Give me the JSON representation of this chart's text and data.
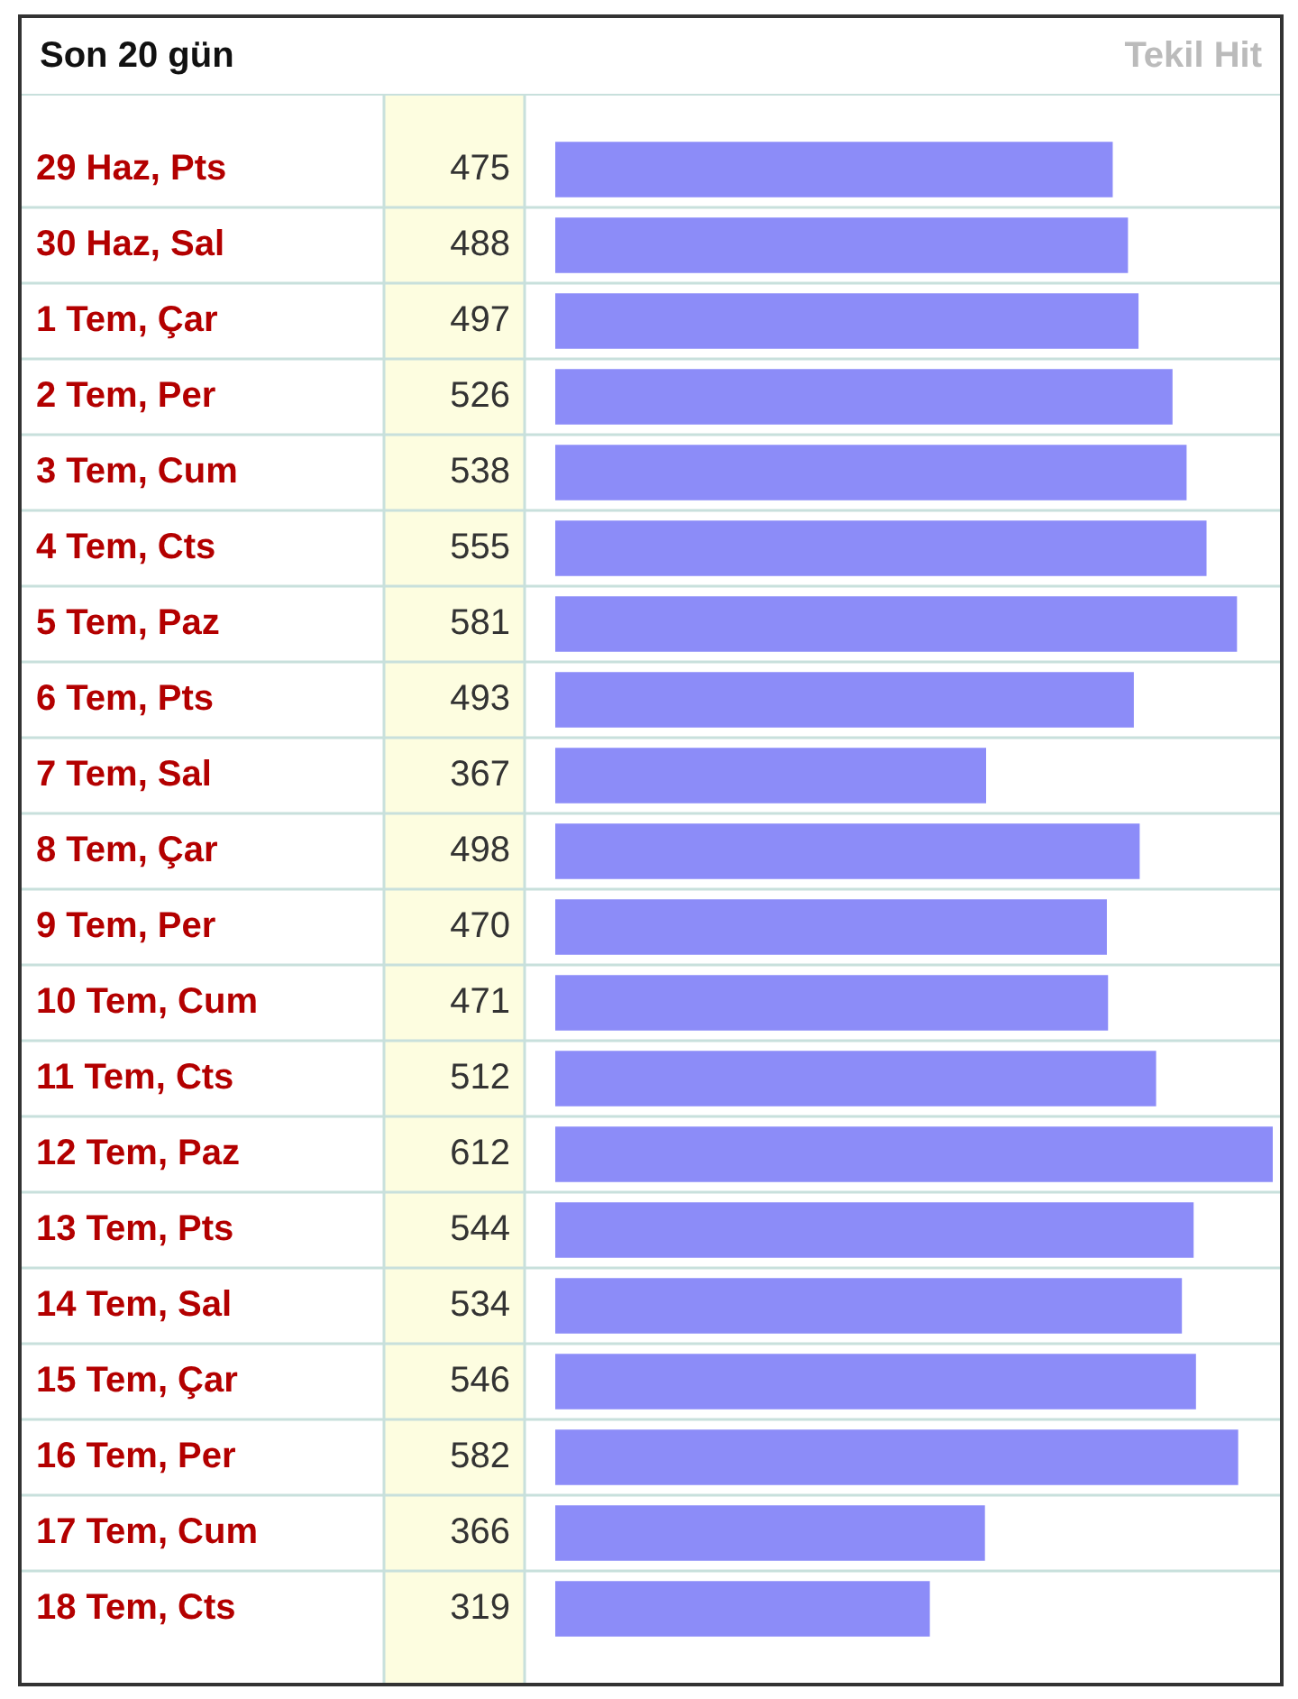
{
  "chart_data": {
    "type": "bar",
    "orientation": "horizontal",
    "title": "Son 20 gün",
    "xlabel": "Tekil Hit",
    "categories": [
      "29 Haz, Pts",
      "30 Haz, Sal",
      "1 Tem, Çar",
      "2 Tem, Per",
      "3 Tem, Cum",
      "4 Tem, Cts",
      "5 Tem, Paz",
      "6 Tem, Pts",
      "7 Tem, Sal",
      "8 Tem, Çar",
      "9 Tem, Per",
      "10 Tem, Cum",
      "11 Tem, Cts",
      "12 Tem, Paz",
      "13 Tem, Pts",
      "14 Tem, Sal",
      "15 Tem, Çar",
      "16 Tem, Per",
      "17 Tem, Cum",
      "18 Tem, Cts"
    ],
    "values": [
      475,
      488,
      497,
      526,
      538,
      555,
      581,
      493,
      367,
      498,
      470,
      471,
      512,
      612,
      544,
      534,
      546,
      582,
      366,
      319
    ],
    "color": "#8c8cf8",
    "data_labels": true,
    "grid": "y",
    "legend": false
  }
}
